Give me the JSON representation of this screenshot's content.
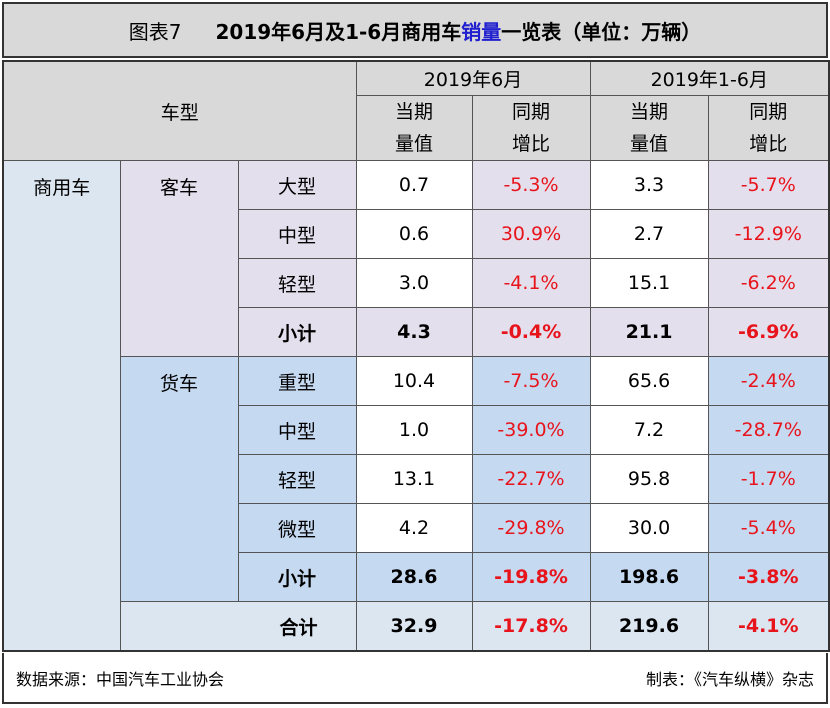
{
  "title": {
    "label": "图表7",
    "main_a": "2019年6月及1-6月商用车",
    "main_hl": "销量",
    "main_b": "一览表（单位：万辆）"
  },
  "header": {
    "type_col": "车型",
    "period1": "2019年6月",
    "period2": "2019年1-6月",
    "vol_l1": "当期",
    "vol_l2": "量值",
    "yoy_l1": "同期",
    "yoy_l2": "增比"
  },
  "category": "商用车",
  "groups": {
    "bus": {
      "name": "客车",
      "rows": [
        {
          "type": "大型",
          "jun_vol": "0.7",
          "jun_yoy": "-5.3%",
          "ytd_vol": "3.3",
          "ytd_yoy": "-5.7%"
        },
        {
          "type": "中型",
          "jun_vol": "0.6",
          "jun_yoy": "30.9%",
          "ytd_vol": "2.7",
          "ytd_yoy": "-12.9%"
        },
        {
          "type": "轻型",
          "jun_vol": "3.0",
          "jun_yoy": "-4.1%",
          "ytd_vol": "15.1",
          "ytd_yoy": "-6.2%"
        }
      ],
      "subtotal": {
        "type": "小计",
        "jun_vol": "4.3",
        "jun_yoy": "-0.4%",
        "ytd_vol": "21.1",
        "ytd_yoy": "-6.9%"
      }
    },
    "truck": {
      "name": "货车",
      "rows": [
        {
          "type": "重型",
          "jun_vol": "10.4",
          "jun_yoy": "-7.5%",
          "ytd_vol": "65.6",
          "ytd_yoy": "-2.4%"
        },
        {
          "type": "中型",
          "jun_vol": "1.0",
          "jun_yoy": "-39.0%",
          "ytd_vol": "7.2",
          "ytd_yoy": "-28.7%"
        },
        {
          "type": "轻型",
          "jun_vol": "13.1",
          "jun_yoy": "-22.7%",
          "ytd_vol": "95.8",
          "ytd_yoy": "-1.7%"
        },
        {
          "type": "微型",
          "jun_vol": "4.2",
          "jun_yoy": "-29.8%",
          "ytd_vol": "30.0",
          "ytd_yoy": "-5.4%"
        }
      ],
      "subtotal": {
        "type": "小计",
        "jun_vol": "28.6",
        "jun_yoy": "-19.8%",
        "ytd_vol": "198.6",
        "ytd_yoy": "-3.8%"
      }
    }
  },
  "total": {
    "type": "合计",
    "jun_vol": "32.9",
    "jun_yoy": "-17.8%",
    "ytd_vol": "219.6",
    "ytd_yoy": "-4.1%"
  },
  "footer": {
    "source": "数据来源：中国汽车工业协会",
    "credit": "制表：《汽车纵横》杂志"
  },
  "colors": {
    "negative": "#e8141c",
    "bus_bg": "#e4dfec",
    "truck_bg": "#c5d9f1",
    "category_bg": "#dce6f1",
    "header_bg": "#d9d9d9",
    "title_highlight": "#1f1fd0"
  }
}
